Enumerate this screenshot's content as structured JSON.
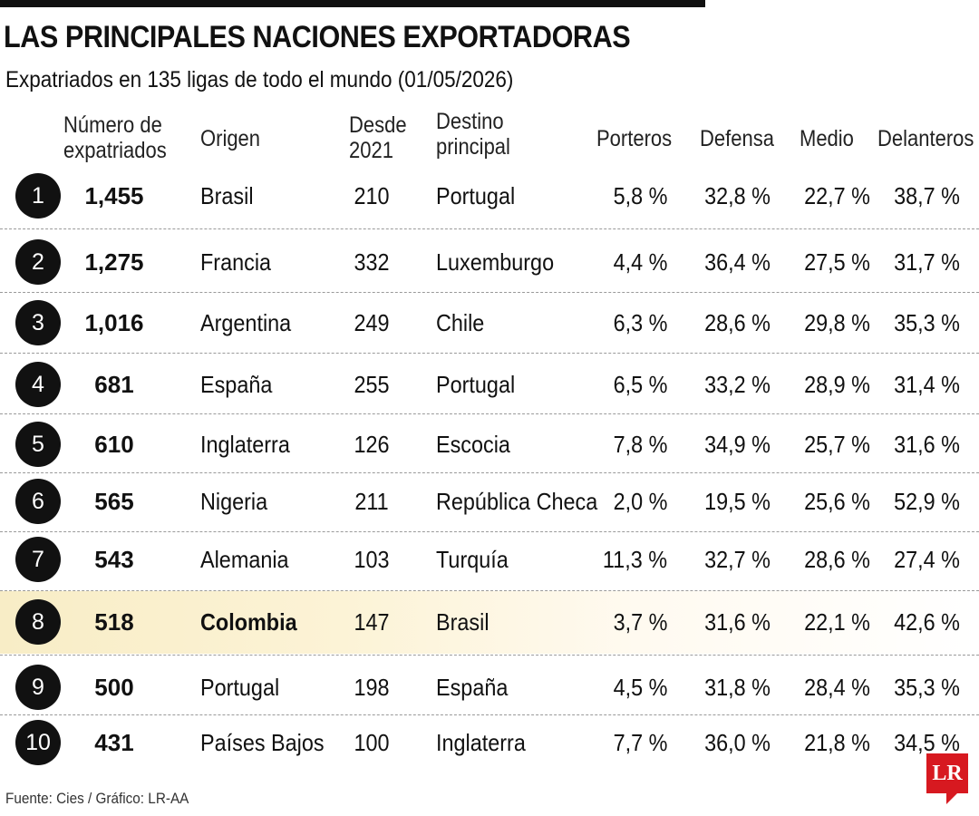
{
  "title": "LAS PRINCIPALES NACIONES EXPORTADORAS",
  "subtitle": "Expatriados en 135 ligas de todo el mundo (01/05/2026)",
  "headers": {
    "num": "Número de\nexpatriados",
    "origin": "Origen",
    "since": "Desde\n2021",
    "dest": "Destino\nprincipal",
    "porteros": "Porteros",
    "defensa": "Defensa",
    "medio": "Medio",
    "delanteros": "Delanteros"
  },
  "rows": [
    {
      "rank": "1",
      "num": "1,455",
      "origin": "Brasil",
      "since": "210",
      "dest": "Portugal",
      "porteros": "5,8 %",
      "defensa": "32,8 %",
      "medio": "22,7 %",
      "delanteros": "38,7 %"
    },
    {
      "rank": "2",
      "num": "1,275",
      "origin": "Francia",
      "since": "332",
      "dest": "Luxemburgo",
      "porteros": "4,4 %",
      "defensa": "36,4 %",
      "medio": "27,5 %",
      "delanteros": "31,7 %"
    },
    {
      "rank": "3",
      "num": "1,016",
      "origin": "Argentina",
      "since": "249",
      "dest": "Chile",
      "porteros": "6,3 %",
      "defensa": "28,6 %",
      "medio": "29,8 %",
      "delanteros": "35,3 %"
    },
    {
      "rank": "4",
      "num": "681",
      "origin": "España",
      "since": "255",
      "dest": "Portugal",
      "porteros": "6,5 %",
      "defensa": "33,2 %",
      "medio": "28,9 %",
      "delanteros": "31,4 %"
    },
    {
      "rank": "5",
      "num": "610",
      "origin": "Inglaterra",
      "since": "126",
      "dest": "Escocia",
      "porteros": "7,8 %",
      "defensa": "34,9 %",
      "medio": "25,7 %",
      "delanteros": "31,6 %"
    },
    {
      "rank": "6",
      "num": "565",
      "origin": "Nigeria",
      "since": "211",
      "dest": "República Checa",
      "porteros": "2,0 %",
      "defensa": "19,5 %",
      "medio": "25,6 %",
      "delanteros": "52,9 %"
    },
    {
      "rank": "7",
      "num": "543",
      "origin": "Alemania",
      "since": "103",
      "dest": "Turquía",
      "porteros": "11,3 %",
      "defensa": "32,7 %",
      "medio": "28,6 %",
      "delanteros": "27,4 %"
    },
    {
      "rank": "8",
      "num": "518",
      "origin": "Colombia",
      "since": "147",
      "dest": "Brasil",
      "porteros": "3,7 %",
      "defensa": "31,6 %",
      "medio": "22,1 %",
      "delanteros": "42,6 %",
      "highlight": true
    },
    {
      "rank": "9",
      "num": "500",
      "origin": "Portugal",
      "since": "198",
      "dest": "España",
      "porteros": "4,5 %",
      "defensa": "31,8 %",
      "medio": "28,4 %",
      "delanteros": "35,3 %"
    },
    {
      "rank": "10",
      "num": "431",
      "origin": "Países Bajos",
      "since": "100",
      "dest": "Inglaterra",
      "porteros": "7,7 %",
      "defensa": "36,0 %",
      "medio": "21,8 %",
      "delanteros": "34,5 %"
    }
  ],
  "highlight_color": "#f8edc6",
  "source": "Fuente: Cies / Gráfico: LR-AA",
  "logo": "LR",
  "logo_color": "#d71920"
}
